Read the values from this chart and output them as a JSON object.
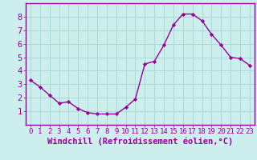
{
  "x": [
    0,
    1,
    2,
    3,
    4,
    5,
    6,
    7,
    8,
    9,
    10,
    11,
    12,
    13,
    14,
    15,
    16,
    17,
    18,
    19,
    20,
    21,
    22,
    23
  ],
  "y": [
    3.3,
    2.8,
    2.2,
    1.6,
    1.7,
    1.2,
    0.9,
    0.8,
    0.8,
    0.8,
    1.3,
    1.9,
    4.5,
    4.7,
    5.9,
    7.4,
    8.2,
    8.2,
    7.7,
    6.7,
    5.9,
    5.0,
    4.9,
    4.4
  ],
  "line_color": "#990099",
  "marker": "D",
  "marker_size": 2.2,
  "linewidth": 1.0,
  "xlabel": "Windchill (Refroidissement éolien,°C)",
  "ylabel": "",
  "xlim": [
    -0.5,
    23.5
  ],
  "ylim": [
    0,
    9
  ],
  "yticks": [
    1,
    2,
    3,
    4,
    5,
    6,
    7,
    8
  ],
  "xticks": [
    0,
    1,
    2,
    3,
    4,
    5,
    6,
    7,
    8,
    9,
    10,
    11,
    12,
    13,
    14,
    15,
    16,
    17,
    18,
    19,
    20,
    21,
    22,
    23
  ],
  "bg_color": "#cceeed",
  "grid_color": "#aad8d8",
  "spine_color": "#990099",
  "tick_color": "#990099",
  "label_color": "#990099",
  "xlabel_fontsize": 7.5,
  "tick_fontsize": 6.5,
  "ytick_fontsize": 7.5
}
